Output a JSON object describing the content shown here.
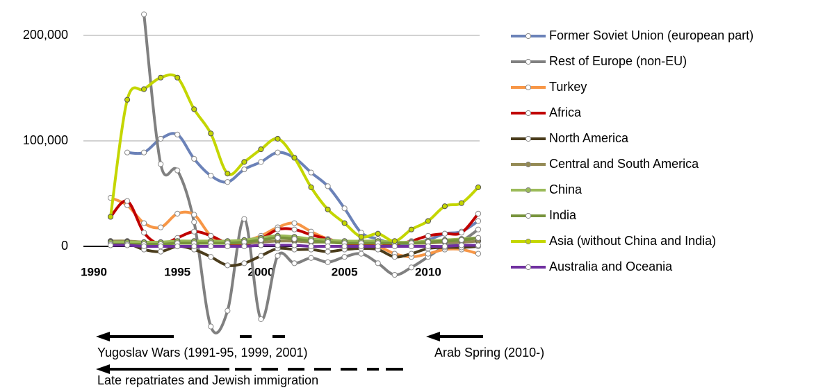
{
  "chart_data": {
    "type": "line",
    "x": [
      1991,
      1992,
      1993,
      1994,
      1995,
      1996,
      1997,
      1998,
      1999,
      2000,
      2001,
      2002,
      2003,
      2004,
      2005,
      2006,
      2007,
      2008,
      2009,
      2010,
      2011,
      2012,
      2013
    ],
    "xlim": [
      1990,
      2013
    ],
    "xticks": [
      1990,
      1995,
      2000,
      2005,
      2010
    ],
    "ylim": [
      -80000,
      220000
    ],
    "yticks": [
      0,
      {
        "value": 100000,
        "label": "100,000"
      },
      {
        "value": 200000,
        "label": "200,000"
      }
    ],
    "grid": true,
    "legend": "right",
    "series": [
      {
        "name": "Former Soviet Union (european part)",
        "color": "#6b82b8",
        "marker": "hollow",
        "values": [
          null,
          89000,
          89000,
          102000,
          106000,
          83000,
          67000,
          61000,
          73000,
          80000,
          89000,
          84000,
          70000,
          57000,
          36000,
          13000,
          7000,
          2000,
          3000,
          6000,
          12000,
          14000,
          24000
        ]
      },
      {
        "name": "Rest of Europe (non-EU)",
        "color": "#808080",
        "marker": "hollow",
        "values": [
          null,
          null,
          220000,
          78000,
          72000,
          23000,
          -76000,
          -61000,
          26000,
          -69000,
          -9000,
          -16000,
          -11000,
          -15000,
          -10000,
          -7000,
          -16000,
          -27000,
          -20000,
          -10000,
          0,
          5000,
          16000
        ]
      },
      {
        "name": "Turkey",
        "color": "#f79646",
        "marker": "hollow",
        "values": [
          46000,
          39000,
          22000,
          18000,
          31000,
          30000,
          10000,
          3000,
          5000,
          10000,
          18000,
          22000,
          14000,
          7000,
          3000,
          2000,
          0,
          -7000,
          -10000,
          -7000,
          -3000,
          -3000,
          -7000
        ]
      },
      {
        "name": "Africa",
        "color": "#c00000",
        "marker": "hollow",
        "values": [
          28000,
          43000,
          13000,
          2000,
          8000,
          14000,
          10000,
          3000,
          2000,
          7000,
          16000,
          16000,
          11000,
          7000,
          3000,
          2000,
          0,
          2000,
          5000,
          10000,
          12000,
          13000,
          31000
        ]
      },
      {
        "name": "North America",
        "color": "#4a3c1c",
        "marker": "hollow",
        "values": [
          5000,
          3000,
          -3000,
          -5000,
          0,
          -3000,
          -10000,
          -18000,
          -16000,
          -9000,
          -2000,
          -3000,
          -3000,
          -5000,
          -3000,
          -2000,
          -3000,
          -10000,
          -7000,
          -2000,
          -1000,
          -1000,
          0
        ]
      },
      {
        "name": "Central and South America",
        "color": "#948a54",
        "marker": "filled",
        "values": [
          5000,
          5000,
          4000,
          3000,
          3000,
          3000,
          3000,
          3000,
          3000,
          4000,
          5000,
          5000,
          4000,
          4000,
          3000,
          3000,
          3000,
          3000,
          3000,
          3000,
          4000,
          4000,
          5000
        ]
      },
      {
        "name": "China",
        "color": "#9bbb59",
        "marker": "filled",
        "values": [
          4000,
          4000,
          4000,
          4000,
          5000,
          5000,
          5000,
          5000,
          6000,
          8000,
          10000,
          9000,
          7000,
          6000,
          5000,
          5000,
          5000,
          4000,
          4000,
          5000,
          6000,
          7000,
          8000
        ]
      },
      {
        "name": "India",
        "color": "#77933c",
        "marker": "hollow",
        "values": [
          2000,
          2000,
          2000,
          2000,
          3000,
          3000,
          3000,
          3000,
          4000,
          6000,
          8000,
          7000,
          5000,
          4000,
          3000,
          3000,
          3000,
          3000,
          3000,
          4000,
          5000,
          6000,
          8000
        ]
      },
      {
        "name": "Asia (without China and India)",
        "color": "#c4d600",
        "marker": "filled",
        "values": [
          28000,
          139000,
          149000,
          160000,
          160000,
          130000,
          107000,
          69000,
          80000,
          92000,
          102000,
          84000,
          56000,
          35000,
          22000,
          9000,
          12000,
          5000,
          16000,
          24000,
          38000,
          41000,
          56000
        ]
      },
      {
        "name": "Australia and Oceania",
        "color": "#7030a0",
        "marker": "hollow",
        "values": [
          1000,
          1000,
          0,
          0,
          0,
          0,
          0,
          0,
          0,
          1000,
          1000,
          1000,
          0,
          0,
          0,
          0,
          0,
          0,
          0,
          0,
          0,
          1000,
          1000
        ]
      }
    ],
    "annotations": [
      "Yugoslav Wars (1991-95, 1999, 2001)",
      "Arab Spring (2010-)",
      "Late repatriates and Jewish immigration"
    ]
  }
}
